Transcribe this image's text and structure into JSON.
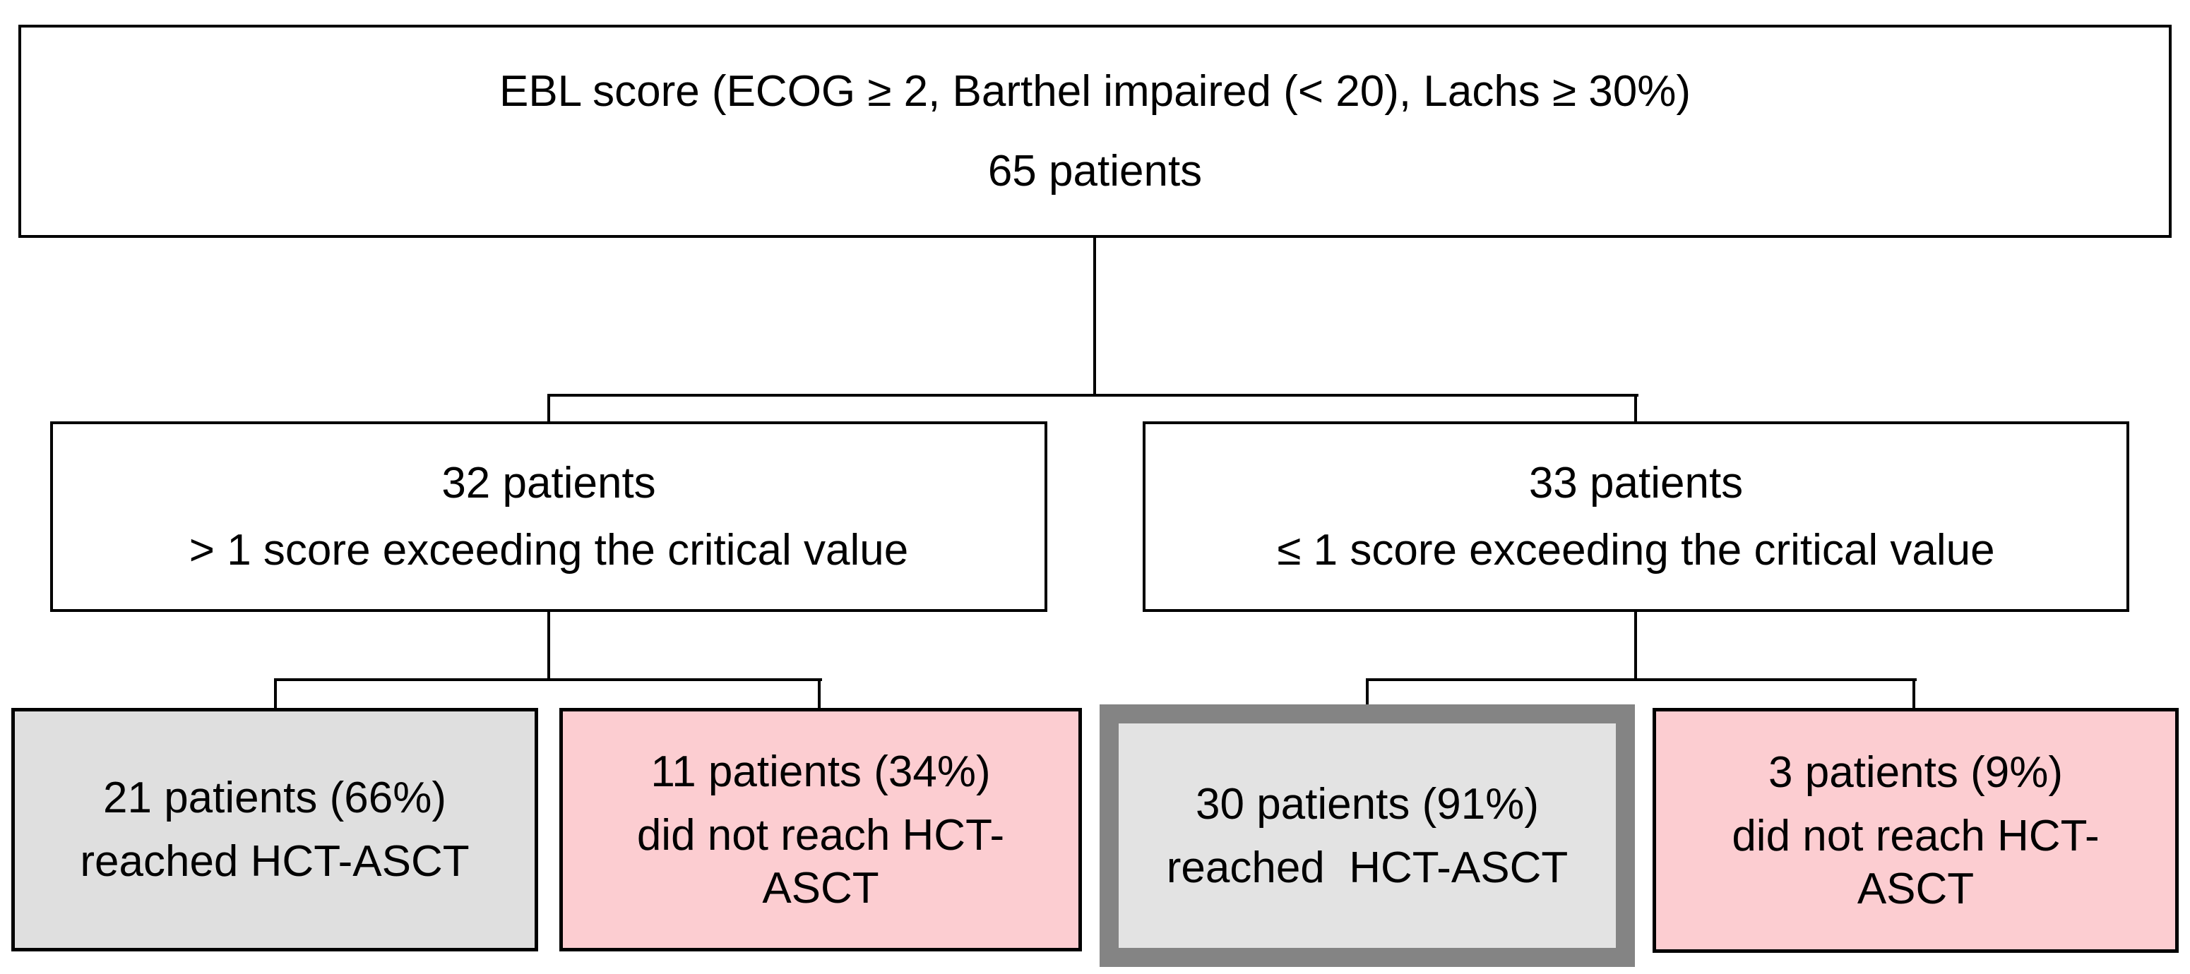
{
  "nodes": {
    "root": {
      "lines": [
        "EBL score (ECOG ≥ 2, Barthel impaired (< 20), Lachs ≥ 30%)",
        "65 patients"
      ]
    },
    "branch_left": {
      "lines": [
        "32 patients",
        "> 1 score exceeding the critical value"
      ]
    },
    "branch_right": {
      "lines": [
        "33 patients",
        "≤ 1 score exceeding the critical value"
      ]
    },
    "outcome_left_reached": {
      "lines": [
        "21 patients (66%)",
        "reached HCT-ASCT"
      ],
      "status": "reached"
    },
    "outcome_left_not_reached": {
      "lines": [
        "11 patients (34%)",
        "did not reach HCT-",
        "ASCT"
      ],
      "status": "not-reached"
    },
    "outcome_right_reached": {
      "lines": [
        "30 patients (91%)",
        "reached  HCT-ASCT"
      ],
      "status": "reached-highlighted"
    },
    "outcome_right_not_reached": {
      "lines": [
        "3 patients (9%)",
        "did not reach HCT-",
        "ASCT"
      ],
      "status": "not-reached"
    }
  },
  "colors": {
    "reached_fill": "#dfdfdf",
    "not_reached_fill": "#fccdd1",
    "highlight_border": "#848484",
    "highlight_fill": "#e3e3e3",
    "connector_line": "#000000",
    "background": "#ffffff"
  }
}
